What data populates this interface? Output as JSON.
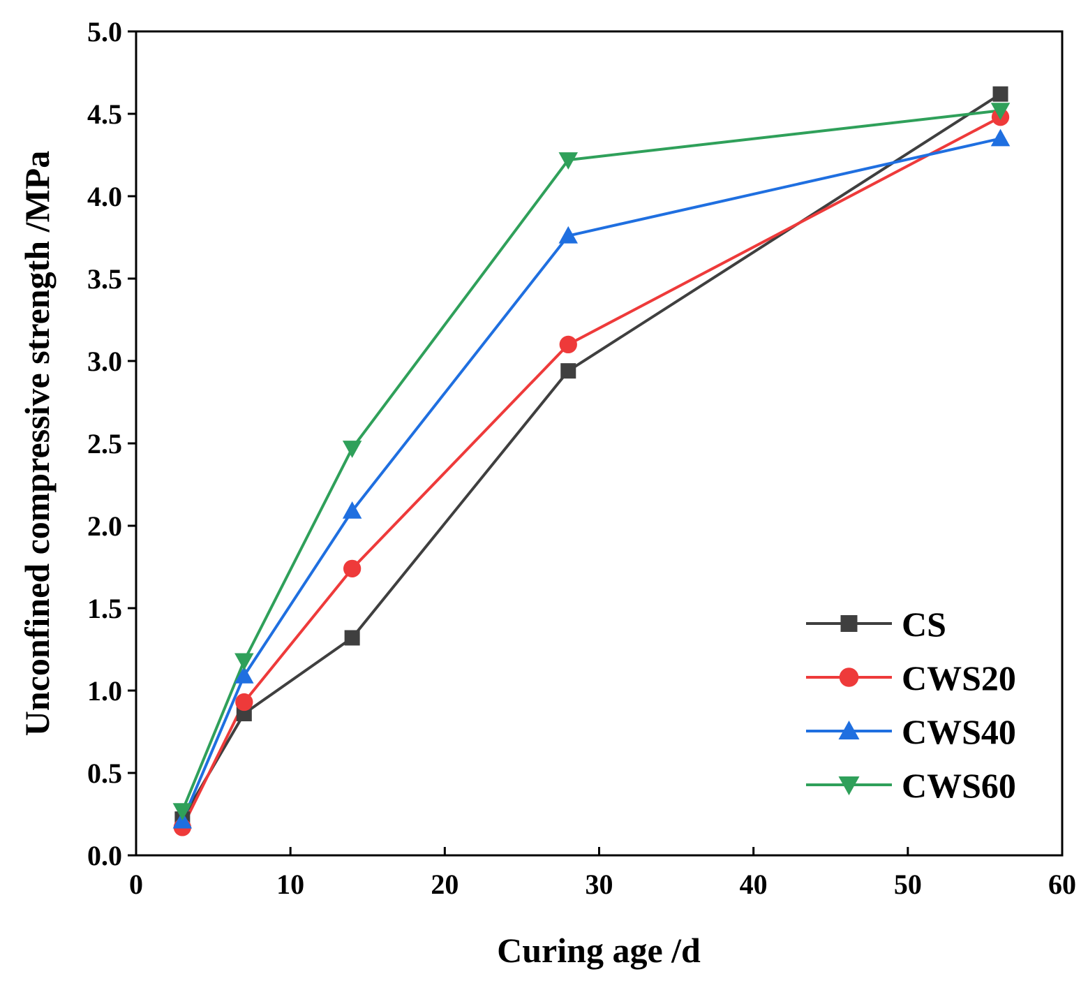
{
  "chart_data": {
    "type": "line",
    "title": "",
    "xlabel": "Curing age /d",
    "ylabel": "Unconfined compressive strength /MPa",
    "xlim": [
      0,
      60
    ],
    "ylim": [
      0,
      5
    ],
    "x_ticks": [
      0,
      10,
      20,
      30,
      40,
      50,
      60
    ],
    "x_tick_labels": [
      "0",
      "10",
      "20",
      "30",
      "40",
      "50",
      "60"
    ],
    "y_ticks": [
      0,
      0.5,
      1,
      1.5,
      2,
      2.5,
      3,
      3.5,
      4,
      4.5,
      5
    ],
    "y_tick_labels": [
      "0.0",
      "0.5",
      "1.0",
      "1.5",
      "2.0",
      "2.5",
      "3.0",
      "3.5",
      "4.0",
      "4.5",
      "5.0"
    ],
    "grid": false,
    "legend_position": "bottom-right",
    "x": [
      3,
      7,
      14,
      28,
      56
    ],
    "series": [
      {
        "name": "CS",
        "marker": "square",
        "color": "#3f3f3f",
        "values": [
          0.22,
          0.86,
          1.32,
          2.94,
          4.62
        ]
      },
      {
        "name": "CWS20",
        "marker": "circle",
        "color": "#ee3a3a",
        "values": [
          0.17,
          0.93,
          1.74,
          3.1,
          4.48
        ]
      },
      {
        "name": "CWS40",
        "marker": "triangle-up",
        "color": "#1f6fe0",
        "values": [
          0.21,
          1.09,
          2.09,
          3.76,
          4.35
        ]
      },
      {
        "name": "CWS60",
        "marker": "triangle-down",
        "color": "#2fa05a",
        "values": [
          0.27,
          1.18,
          2.47,
          4.22,
          4.52
        ]
      }
    ]
  }
}
